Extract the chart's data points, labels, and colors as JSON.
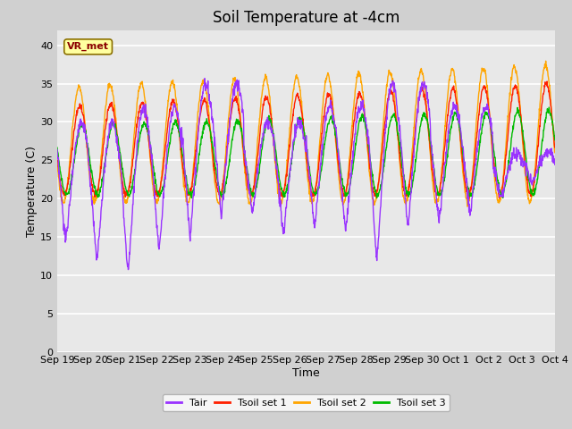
{
  "title": "Soil Temperature at -4cm",
  "xlabel": "Time",
  "ylabel": "Temperature (C)",
  "ylim": [
    0,
    42
  ],
  "yticks": [
    0,
    5,
    10,
    15,
    20,
    25,
    30,
    35,
    40
  ],
  "xlabels": [
    "Sep 19",
    "Sep 20",
    "Sep 21",
    "Sep 22",
    "Sep 23",
    "Sep 24",
    "Sep 25",
    "Sep 26",
    "Sep 27",
    "Sep 28",
    "Sep 29",
    "Sep 30",
    "Oct 1",
    "Oct 2",
    "Oct 3",
    "Oct 4"
  ],
  "annotation_text": "VR_met",
  "annotation_color": "#8B0000",
  "annotation_bg": "#FFFFA0",
  "annotation_border": "#8B7000",
  "colors": {
    "Tair": "#9933FF",
    "Tsoil1": "#FF2000",
    "Tsoil2": "#FFA500",
    "Tsoil3": "#00BB00"
  },
  "legend_labels": [
    "Tair",
    "Tsoil set 1",
    "Tsoil set 2",
    "Tsoil set 3"
  ],
  "plot_bg": "#E8E8E8",
  "fig_bg": "#D0D0D0",
  "title_fontsize": 12,
  "label_fontsize": 9,
  "tick_fontsize": 8
}
